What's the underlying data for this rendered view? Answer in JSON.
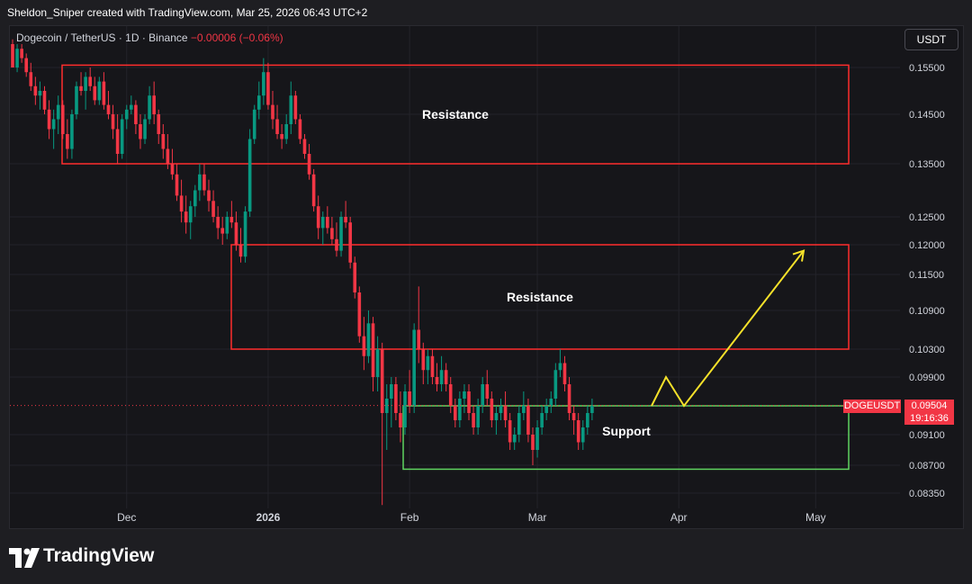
{
  "header": {
    "attribution": "Sheldon_Sniper created with TradingView.com, Mar 25, 2026 06:43 UTC+2"
  },
  "symbol": {
    "name": "Dogecoin / TetherUS · 1D · Binance",
    "change": "−0.00006 (−0.06%)"
  },
  "currency_button": "USDT",
  "price_tag": {
    "symbol": "DOGEUSDT",
    "price": "0.09504",
    "countdown": "19:16:36"
  },
  "logo": {
    "text": "TradingView"
  },
  "colors": {
    "up": "#089981",
    "down": "#f23645",
    "resistance_box": "#ff2d2d",
    "support_box": "#5fd35f",
    "projection": "#f5e12a"
  },
  "chart_data": {
    "type": "candlestick",
    "y_ticks": [
      "0.15500",
      "0.14500",
      "0.13500",
      "0.12500",
      "0.12000",
      "0.11500",
      "0.10900",
      "0.10300",
      "0.09900",
      "0.09504",
      "0.09100",
      "0.08700",
      "0.08350"
    ],
    "x_ticks": [
      "Dec",
      "2026",
      "Feb",
      "Mar",
      "Apr",
      "May"
    ],
    "zones": [
      {
        "label": "Resistance",
        "type": "resistance",
        "low": 0.135,
        "high": 0.1555
      },
      {
        "label": "Resistance",
        "type": "resistance",
        "low": 0.103,
        "high": 0.12
      },
      {
        "label": "Support",
        "type": "support",
        "low": 0.0865,
        "high": 0.095
      }
    ],
    "last_price": 0.09504,
    "projection": [
      0.095,
      0.099,
      0.095,
      0.119
    ],
    "candles": [
      [
        0.16,
        0.161,
        0.155,
        0.155
      ],
      [
        0.155,
        0.16,
        0.154,
        0.159
      ],
      [
        0.159,
        0.16,
        0.156,
        0.157
      ],
      [
        0.157,
        0.158,
        0.153,
        0.154
      ],
      [
        0.154,
        0.156,
        0.15,
        0.151
      ],
      [
        0.151,
        0.153,
        0.147,
        0.149
      ],
      [
        0.149,
        0.152,
        0.146,
        0.15
      ],
      [
        0.15,
        0.151,
        0.145,
        0.146
      ],
      [
        0.146,
        0.148,
        0.14,
        0.142
      ],
      [
        0.142,
        0.146,
        0.138,
        0.144
      ],
      [
        0.144,
        0.149,
        0.141,
        0.147
      ],
      [
        0.147,
        0.148,
        0.14,
        0.141
      ],
      [
        0.141,
        0.144,
        0.136,
        0.138
      ],
      [
        0.138,
        0.146,
        0.136,
        0.145
      ],
      [
        0.145,
        0.152,
        0.144,
        0.151
      ],
      [
        0.151,
        0.154,
        0.149,
        0.15
      ],
      [
        0.15,
        0.154,
        0.146,
        0.153
      ],
      [
        0.153,
        0.155,
        0.15,
        0.151
      ],
      [
        0.151,
        0.153,
        0.147,
        0.148
      ],
      [
        0.148,
        0.153,
        0.147,
        0.152
      ],
      [
        0.152,
        0.154,
        0.146,
        0.147
      ],
      [
        0.147,
        0.15,
        0.144,
        0.145
      ],
      [
        0.145,
        0.147,
        0.14,
        0.142
      ],
      [
        0.142,
        0.145,
        0.135,
        0.137
      ],
      [
        0.137,
        0.145,
        0.136,
        0.144
      ],
      [
        0.144,
        0.147,
        0.142,
        0.146
      ],
      [
        0.146,
        0.149,
        0.145,
        0.147
      ],
      [
        0.147,
        0.148,
        0.141,
        0.143
      ],
      [
        0.143,
        0.145,
        0.138,
        0.14
      ],
      [
        0.14,
        0.145,
        0.139,
        0.144
      ],
      [
        0.144,
        0.151,
        0.143,
        0.149
      ],
      [
        0.149,
        0.152,
        0.143,
        0.145
      ],
      [
        0.145,
        0.146,
        0.139,
        0.141
      ],
      [
        0.141,
        0.143,
        0.136,
        0.138
      ],
      [
        0.138,
        0.141,
        0.134,
        0.135
      ],
      [
        0.135,
        0.138,
        0.132,
        0.133
      ],
      [
        0.133,
        0.135,
        0.128,
        0.129
      ],
      [
        0.129,
        0.132,
        0.124,
        0.126
      ],
      [
        0.126,
        0.129,
        0.122,
        0.124
      ],
      [
        0.124,
        0.128,
        0.121,
        0.127
      ],
      [
        0.127,
        0.131,
        0.125,
        0.13
      ],
      [
        0.13,
        0.135,
        0.128,
        0.133
      ],
      [
        0.133,
        0.135,
        0.129,
        0.13
      ],
      [
        0.13,
        0.132,
        0.126,
        0.128
      ],
      [
        0.128,
        0.13,
        0.124,
        0.125
      ],
      [
        0.125,
        0.127,
        0.121,
        0.123
      ],
      [
        0.123,
        0.125,
        0.12,
        0.122
      ],
      [
        0.122,
        0.126,
        0.121,
        0.125
      ],
      [
        0.125,
        0.128,
        0.123,
        0.124
      ],
      [
        0.124,
        0.126,
        0.119,
        0.12
      ],
      [
        0.12,
        0.123,
        0.117,
        0.118
      ],
      [
        0.118,
        0.127,
        0.117,
        0.126
      ],
      [
        0.126,
        0.142,
        0.125,
        0.14
      ],
      [
        0.14,
        0.147,
        0.139,
        0.146
      ],
      [
        0.146,
        0.152,
        0.144,
        0.149
      ],
      [
        0.149,
        0.157,
        0.147,
        0.154
      ],
      [
        0.154,
        0.156,
        0.146,
        0.147
      ],
      [
        0.147,
        0.15,
        0.142,
        0.144
      ],
      [
        0.144,
        0.147,
        0.14,
        0.141
      ],
      [
        0.141,
        0.143,
        0.138,
        0.14
      ],
      [
        0.14,
        0.145,
        0.139,
        0.143
      ],
      [
        0.143,
        0.152,
        0.141,
        0.149
      ],
      [
        0.149,
        0.15,
        0.143,
        0.144
      ],
      [
        0.144,
        0.145,
        0.139,
        0.14
      ],
      [
        0.14,
        0.141,
        0.136,
        0.137
      ],
      [
        0.137,
        0.139,
        0.132,
        0.133
      ],
      [
        0.133,
        0.134,
        0.126,
        0.127
      ],
      [
        0.127,
        0.129,
        0.121,
        0.123
      ],
      [
        0.123,
        0.126,
        0.12,
        0.125
      ],
      [
        0.125,
        0.127,
        0.122,
        0.123
      ],
      [
        0.123,
        0.125,
        0.12,
        0.121
      ],
      [
        0.121,
        0.124,
        0.118,
        0.119
      ],
      [
        0.119,
        0.126,
        0.118,
        0.125
      ],
      [
        0.125,
        0.128,
        0.123,
        0.124
      ],
      [
        0.124,
        0.125,
        0.116,
        0.117
      ],
      [
        0.117,
        0.118,
        0.111,
        0.112
      ],
      [
        0.112,
        0.113,
        0.104,
        0.105
      ],
      [
        0.105,
        0.108,
        0.1,
        0.102
      ],
      [
        0.102,
        0.109,
        0.101,
        0.107
      ],
      [
        0.107,
        0.108,
        0.097,
        0.099
      ],
      [
        0.099,
        0.105,
        0.097,
        0.103
      ],
      [
        0.103,
        0.104,
        0.082,
        0.094
      ],
      [
        0.094,
        0.098,
        0.089,
        0.096
      ],
      [
        0.096,
        0.099,
        0.092,
        0.098
      ],
      [
        0.098,
        0.099,
        0.093,
        0.094
      ],
      [
        0.094,
        0.097,
        0.09,
        0.092
      ],
      [
        0.092,
        0.098,
        0.091,
        0.097
      ],
      [
        0.097,
        0.1,
        0.094,
        0.095
      ],
      [
        0.095,
        0.107,
        0.094,
        0.106
      ],
      [
        0.106,
        0.113,
        0.101,
        0.103
      ],
      [
        0.103,
        0.104,
        0.098,
        0.1
      ],
      [
        0.1,
        0.103,
        0.098,
        0.102
      ],
      [
        0.102,
        0.103,
        0.098,
        0.099
      ],
      [
        0.099,
        0.101,
        0.097,
        0.098
      ],
      [
        0.098,
        0.102,
        0.097,
        0.1
      ],
      [
        0.1,
        0.101,
        0.097,
        0.098
      ],
      [
        0.098,
        0.099,
        0.094,
        0.095
      ],
      [
        0.095,
        0.096,
        0.092,
        0.093
      ],
      [
        0.093,
        0.097,
        0.092,
        0.096
      ],
      [
        0.096,
        0.098,
        0.094,
        0.097
      ],
      [
        0.097,
        0.098,
        0.093,
        0.094
      ],
      [
        0.094,
        0.095,
        0.091,
        0.092
      ],
      [
        0.092,
        0.096,
        0.091,
        0.095
      ],
      [
        0.095,
        0.099,
        0.094,
        0.098
      ],
      [
        0.098,
        0.1,
        0.095,
        0.096
      ],
      [
        0.096,
        0.097,
        0.092,
        0.093
      ],
      [
        0.093,
        0.095,
        0.091,
        0.094
      ],
      [
        0.094,
        0.096,
        0.093,
        0.095
      ],
      [
        0.095,
        0.097,
        0.092,
        0.093
      ],
      [
        0.093,
        0.094,
        0.089,
        0.09
      ],
      [
        0.09,
        0.092,
        0.089,
        0.091
      ],
      [
        0.091,
        0.095,
        0.09,
        0.094
      ],
      [
        0.094,
        0.097,
        0.093,
        0.095
      ],
      [
        0.095,
        0.096,
        0.09,
        0.091
      ],
      [
        0.091,
        0.092,
        0.087,
        0.089
      ],
      [
        0.089,
        0.093,
        0.088,
        0.092
      ],
      [
        0.092,
        0.095,
        0.091,
        0.094
      ],
      [
        0.094,
        0.096,
        0.093,
        0.095
      ],
      [
        0.095,
        0.097,
        0.094,
        0.096
      ],
      [
        0.096,
        0.101,
        0.095,
        0.1
      ],
      [
        0.1,
        0.103,
        0.099,
        0.101
      ],
      [
        0.101,
        0.102,
        0.097,
        0.098
      ],
      [
        0.098,
        0.099,
        0.093,
        0.094
      ],
      [
        0.094,
        0.095,
        0.091,
        0.093
      ],
      [
        0.093,
        0.094,
        0.089,
        0.09
      ],
      [
        0.09,
        0.093,
        0.089,
        0.092
      ],
      [
        0.092,
        0.095,
        0.091,
        0.094
      ],
      [
        0.094,
        0.096,
        0.093,
        0.095
      ]
    ]
  }
}
